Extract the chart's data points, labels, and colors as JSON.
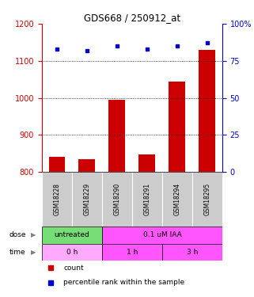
{
  "title": "GDS668 / 250912_at",
  "samples": [
    "GSM18228",
    "GSM18229",
    "GSM18290",
    "GSM18291",
    "GSM18294",
    "GSM18295"
  ],
  "counts": [
    840,
    835,
    995,
    848,
    1045,
    1130
  ],
  "percentiles": [
    83,
    82,
    85,
    83,
    85,
    87
  ],
  "ylim_left": [
    800,
    1200
  ],
  "ylim_right": [
    0,
    100
  ],
  "yticks_left": [
    800,
    900,
    1000,
    1100,
    1200
  ],
  "yticks_right": [
    0,
    25,
    50,
    75,
    100
  ],
  "bar_color": "#cc0000",
  "dot_color": "#0000cc",
  "dose_untreated_color": "#77dd77",
  "dose_treated_color": "#ff55ff",
  "time_0h_color": "#ffaaff",
  "time_1h_color": "#ff55ff",
  "time_3h_color": "#ff55ff",
  "sample_bg_color": "#cccccc",
  "legend_count_color": "#cc0000",
  "legend_pct_color": "#0000cc",
  "left_axis_color": "#cc0000",
  "right_axis_color": "#0000cc"
}
